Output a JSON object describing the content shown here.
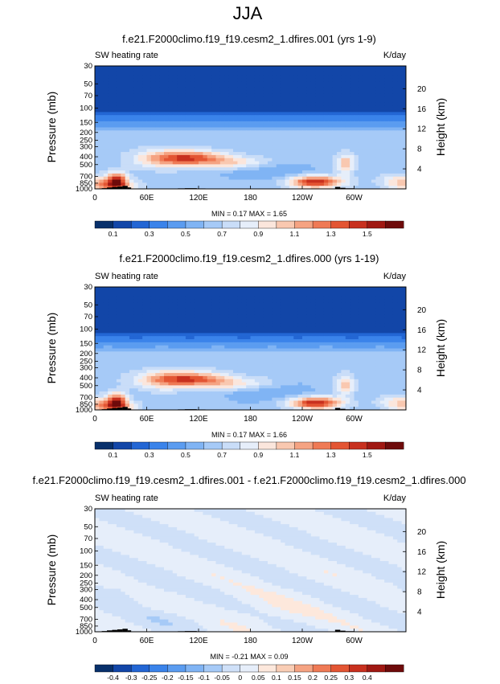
{
  "page": {
    "title": "JJA"
  },
  "colors": {
    "scale_abs": [
      "#08306b",
      "#1246a8",
      "#2366d4",
      "#3a83ea",
      "#5b9cf0",
      "#80b4f4",
      "#a6caf7",
      "#c9ddf8",
      "#e6eefa",
      "#fbe6dc",
      "#f9c8b0",
      "#f5a382",
      "#ef7a55",
      "#e35533",
      "#c8301e",
      "#a01812",
      "#6e0b0b"
    ],
    "scale_diff": [
      "#08306b",
      "#1246a8",
      "#2366d4",
      "#3a83ea",
      "#5b9cf0",
      "#80b4f4",
      "#a6caf7",
      "#cfe0f8",
      "#e6eefa",
      "#fde8dc",
      "#f9cdb5",
      "#f5a382",
      "#ef7a55",
      "#e35533",
      "#c8301e",
      "#a01812",
      "#6e0b0b"
    ],
    "terrain": "#000000"
  },
  "chart_data": [
    {
      "type": "heatmap",
      "title": "f.e21.F2000climo.f19_f19.cesm2_1.dfires.001 (yrs 1-9)",
      "left_label": "SW heating rate",
      "right_label": "K/day",
      "ylabel": "Pressure (mb)",
      "ylabel_right": "Height (km)",
      "x_ticks": [
        "0",
        "60E",
        "120E",
        "180",
        "120W",
        "60W"
      ],
      "y_ticks": [
        "30",
        "50",
        "70",
        "100",
        "150",
        "200",
        "250",
        "300",
        "400",
        "500",
        "700",
        "850",
        "1000"
      ],
      "height_ticks": [
        "20",
        "16",
        "12",
        "8",
        "4"
      ],
      "stats": "MIN =  0.17  MAX =  1.65",
      "colorbar_labels": [
        "0.1",
        "0.3",
        "0.5",
        "0.7",
        "0.9",
        "1.1",
        "1.3",
        "1.5"
      ],
      "xlim": [
        0,
        360
      ],
      "ylim": [
        1000,
        30
      ],
      "value_range": [
        0.17,
        1.65
      ]
    },
    {
      "type": "heatmap",
      "title": "f.e21.F2000climo.f19_f19.cesm2_1.dfires.000 (yrs 1-19)",
      "left_label": "SW heating rate",
      "right_label": "K/day",
      "ylabel": "Pressure (mb)",
      "ylabel_right": "Height (km)",
      "x_ticks": [
        "0",
        "60E",
        "120E",
        "180",
        "120W",
        "60W"
      ],
      "y_ticks": [
        "30",
        "50",
        "70",
        "100",
        "150",
        "200",
        "250",
        "300",
        "400",
        "500",
        "700",
        "850",
        "1000"
      ],
      "height_ticks": [
        "20",
        "16",
        "12",
        "8",
        "4"
      ],
      "stats": "MIN =  0.17  MAX =  1.66",
      "colorbar_labels": [
        "0.1",
        "0.3",
        "0.5",
        "0.7",
        "0.9",
        "1.1",
        "1.3",
        "1.5"
      ],
      "xlim": [
        0,
        360
      ],
      "ylim": [
        1000,
        30
      ],
      "value_range": [
        0.17,
        1.66
      ]
    },
    {
      "type": "heatmap",
      "title": "f.e21.F2000climo.f19_f19.cesm2_1.dfires.001 - f.e21.F2000climo.f19_f19.cesm2_1.dfires.000",
      "left_label": "SW heating rate",
      "right_label": "K/day",
      "ylabel": "Pressure (mb)",
      "ylabel_right": "Height (km)",
      "x_ticks": [
        "0",
        "60E",
        "120E",
        "180",
        "120W",
        "60W"
      ],
      "y_ticks": [
        "30",
        "50",
        "70",
        "100",
        "150",
        "200",
        "250",
        "300",
        "400",
        "500",
        "700",
        "850",
        "1000"
      ],
      "height_ticks": [
        "20",
        "16",
        "12",
        "8",
        "4"
      ],
      "stats": "MIN = -0.21  MAX =  0.09",
      "colorbar_labels": [
        "-0.4",
        "-0.3",
        "-0.25",
        "-0.2",
        "-0.15",
        "-0.1",
        "-0.05",
        "0",
        "0.05",
        "0.1",
        "0.15",
        "0.2",
        "0.25",
        "0.3",
        "0.4"
      ],
      "xlim": [
        0,
        360
      ],
      "ylim": [
        1000,
        30
      ],
      "value_range": [
        -0.21,
        0.09
      ]
    }
  ]
}
